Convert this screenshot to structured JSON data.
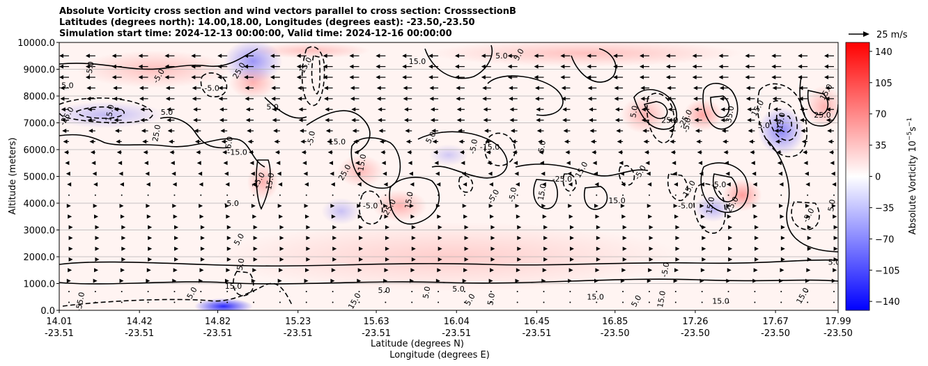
{
  "chart_data": {
    "type": "heatmap",
    "title_lines": [
      "Absolute Vorticity cross section and wind vectors parallel to cross section: CrosssectionB",
      "Latitudes (degrees north): 14.00,18.00, Longitudes (degrees east): -23.50,-23.50",
      "Simulation start time: 2024-12-13 00:00:00, Valid time: 2024-12-16 00:00:00"
    ],
    "ylabel": "Altitude (meters)",
    "xlabel_lat": "Latitude (degrees N)",
    "xlabel_lon": "Longitude (degrees E)",
    "ylim": [
      0,
      10000
    ],
    "xlim": [
      14.01,
      17.99
    ],
    "y_ticks": [
      "0.0",
      "1000.0",
      "2000.0",
      "3000.0",
      "4000.0",
      "5000.0",
      "6000.0",
      "7000.0",
      "8000.0",
      "9000.0",
      "10000.0"
    ],
    "y_tick_values": [
      0,
      1000,
      2000,
      3000,
      4000,
      5000,
      6000,
      7000,
      8000,
      9000,
      10000
    ],
    "x_ticks": [
      {
        "lat": "14.01",
        "lon": "-23.51",
        "v": 14.01
      },
      {
        "lat": "14.42",
        "lon": "-23.51",
        "v": 14.42
      },
      {
        "lat": "14.82",
        "lon": "-23.51",
        "v": 14.82
      },
      {
        "lat": "15.23",
        "lon": "-23.51",
        "v": 15.23
      },
      {
        "lat": "15.63",
        "lon": "-23.51",
        "v": 15.63
      },
      {
        "lat": "16.04",
        "lon": "-23.51",
        "v": 16.04
      },
      {
        "lat": "16.45",
        "lon": "-23.51",
        "v": 16.45
      },
      {
        "lat": "16.85",
        "lon": "-23.50",
        "v": 16.85
      },
      {
        "lat": "17.26",
        "lon": "-23.50",
        "v": 17.26
      },
      {
        "lat": "17.67",
        "lon": "-23.50",
        "v": 17.67
      },
      {
        "lat": "17.99",
        "lon": "-23.50",
        "v": 17.99
      }
    ],
    "grid": "horizontal",
    "colorbar": {
      "label": "Absolute Vorticity 10$^{-5}$s$^{-1}$",
      "label_main": "Absolute Vorticity 10",
      "label_exp1": "−5",
      "label_mid": "s",
      "label_exp2": "−1",
      "range": [
        -150,
        150
      ],
      "ticks": [
        "140",
        "105",
        "70",
        "35",
        "0",
        "−35",
        "−70",
        "−105",
        "−140"
      ],
      "tick_values": [
        140,
        105,
        70,
        35,
        0,
        -35,
        -70,
        -105,
        -140
      ],
      "colormap": "bwr",
      "color_low": "#0000ff",
      "color_mid": "#ffffff",
      "color_high": "#ff0000"
    },
    "quiver_key": {
      "label": "25 m/s"
    },
    "vector_rows": [
      {
        "alt": 9500,
        "u": -1.0
      },
      {
        "alt": 9100,
        "u": -1.0
      },
      {
        "alt": 8700,
        "u": -1.0
      },
      {
        "alt": 8300,
        "u": -0.9
      },
      {
        "alt": 7900,
        "u": -0.9
      },
      {
        "alt": 7500,
        "u": -0.8
      },
      {
        "alt": 7100,
        "u": -0.8
      },
      {
        "alt": 6700,
        "u": -0.7
      },
      {
        "alt": 6300,
        "u": -0.6
      },
      {
        "alt": 5900,
        "u": -0.5
      },
      {
        "alt": 5500,
        "u": -0.4
      },
      {
        "alt": 5100,
        "u": -0.3
      },
      {
        "alt": 4700,
        "u": -0.2
      },
      {
        "alt": 4300,
        "u": -0.1
      },
      {
        "alt": 3900,
        "u": 0.2
      },
      {
        "alt": 3500,
        "u": 0.3
      },
      {
        "alt": 3100,
        "u": 0.4
      },
      {
        "alt": 2700,
        "u": 0.4
      },
      {
        "alt": 2300,
        "u": 0.4
      },
      {
        "alt": 1900,
        "u": 0.4
      },
      {
        "alt": 1500,
        "u": 0.3
      },
      {
        "alt": 1100,
        "u": 0.2
      },
      {
        "alt": 700,
        "u": 0.1
      },
      {
        "alt": 300,
        "u": 0.05
      }
    ],
    "vorticity_blobs": [
      {
        "x": 14.25,
        "y": 7300,
        "rx": 0.3,
        "ry": 500,
        "v": -20
      },
      {
        "x": 14.5,
        "y": 9000,
        "rx": 0.4,
        "ry": 700,
        "v": 15
      },
      {
        "x": 15.0,
        "y": 9300,
        "rx": 0.15,
        "ry": 800,
        "v": -45
      },
      {
        "x": 15.0,
        "y": 8500,
        "rx": 0.12,
        "ry": 600,
        "v": 25
      },
      {
        "x": 15.05,
        "y": 4800,
        "rx": 0.08,
        "ry": 700,
        "v": 25
      },
      {
        "x": 15.55,
        "y": 5200,
        "rx": 0.12,
        "ry": 600,
        "v": 20
      },
      {
        "x": 15.45,
        "y": 3700,
        "rx": 0.1,
        "ry": 500,
        "v": -15
      },
      {
        "x": 15.75,
        "y": 3900,
        "rx": 0.14,
        "ry": 600,
        "v": 25
      },
      {
        "x": 16.0,
        "y": 5800,
        "rx": 0.1,
        "ry": 400,
        "v": -10
      },
      {
        "x": 17.0,
        "y": 7300,
        "rx": 0.12,
        "ry": 700,
        "v": 25
      },
      {
        "x": 17.3,
        "y": 7300,
        "rx": 0.1,
        "ry": 600,
        "v": 35
      },
      {
        "x": 17.5,
        "y": 4300,
        "rx": 0.1,
        "ry": 600,
        "v": 40
      },
      {
        "x": 17.35,
        "y": 3800,
        "rx": 0.1,
        "ry": 500,
        "v": -25
      },
      {
        "x": 17.7,
        "y": 6700,
        "rx": 0.12,
        "ry": 900,
        "v": -55
      },
      {
        "x": 17.92,
        "y": 7600,
        "rx": 0.1,
        "ry": 800,
        "v": 25
      },
      {
        "x": 16.7,
        "y": 9600,
        "rx": 0.8,
        "ry": 500,
        "v": 15
      },
      {
        "x": 14.85,
        "y": 150,
        "rx": 0.15,
        "ry": 300,
        "v": -120
      },
      {
        "x": 15.3,
        "y": 9700,
        "rx": 0.3,
        "ry": 300,
        "v": 15
      },
      {
        "x": 16.0,
        "y": 2000,
        "rx": 1.2,
        "ry": 1300,
        "v": 6
      }
    ],
    "contour_labels": [
      {
        "text": "-5.0",
        "x": 14.18,
        "y": 9000
      },
      {
        "text": "15.0",
        "x": 14.04,
        "y": 8300
      },
      {
        "text": "-25.0",
        "x": 14.06,
        "y": 7200
      },
      {
        "text": "-15.0",
        "x": 14.28,
        "y": 7300
      },
      {
        "text": "5.0",
        "x": 14.56,
        "y": 7300
      },
      {
        "text": "-5.0",
        "x": 14.53,
        "y": 8700
      },
      {
        "text": "25.0",
        "x": 14.52,
        "y": 6600
      },
      {
        "text": "-5.0",
        "x": 14.79,
        "y": 8200
      },
      {
        "text": "25.0",
        "x": 14.94,
        "y": 8900
      },
      {
        "text": "-5.0",
        "x": 14.89,
        "y": 6200
      },
      {
        "text": "-15.0",
        "x": 14.92,
        "y": 5800
      },
      {
        "text": "25.0",
        "x": 15.04,
        "y": 4800
      },
      {
        "text": "15.0",
        "x": 15.1,
        "y": 4800
      },
      {
        "text": "-5.0",
        "x": 14.89,
        "y": 3900
      },
      {
        "text": "5.0",
        "x": 14.94,
        "y": 2600
      },
      {
        "text": "5.0",
        "x": 14.95,
        "y": 1700
      },
      {
        "text": "5.0",
        "x": 15.1,
        "y": 7500
      },
      {
        "text": "15.0",
        "x": 15.28,
        "y": 9100
      },
      {
        "text": "-5.0",
        "x": 15.31,
        "y": 6400
      },
      {
        "text": "15.0",
        "x": 15.43,
        "y": 6200
      },
      {
        "text": "25.0",
        "x": 15.48,
        "y": 5100
      },
      {
        "text": "15.0",
        "x": 15.57,
        "y": 5500
      },
      {
        "text": "-5.0",
        "x": 15.6,
        "y": 3800
      },
      {
        "text": "25.0",
        "x": 15.71,
        "y": 3800
      },
      {
        "text": "15.0",
        "x": 15.81,
        "y": 4100
      },
      {
        "text": "15.0",
        "x": 15.84,
        "y": 9200
      },
      {
        "text": "5.0",
        "x": 15.92,
        "y": 6400
      },
      {
        "text": "-5.0",
        "x": 16.14,
        "y": 6100
      },
      {
        "text": "-15.0",
        "x": 16.21,
        "y": 6000
      },
      {
        "text": "-5.0",
        "x": 16.24,
        "y": 4200
      },
      {
        "text": "-5.0",
        "x": 16.34,
        "y": 4300
      },
      {
        "text": "5.0",
        "x": 16.27,
        "y": 9400
      },
      {
        "text": "5.0",
        "x": 16.37,
        "y": 9500
      },
      {
        "text": "15.0",
        "x": 16.49,
        "y": 4400
      },
      {
        "text": "-25.0",
        "x": 16.58,
        "y": 4800
      },
      {
        "text": "15.0",
        "x": 16.69,
        "y": 5200
      },
      {
        "text": "5.0",
        "x": 16.49,
        "y": 6100
      },
      {
        "text": "15.0",
        "x": 16.86,
        "y": 4000
      },
      {
        "text": "-5.0",
        "x": 16.99,
        "y": 5100
      },
      {
        "text": "5.0",
        "x": 16.96,
        "y": 7400
      },
      {
        "text": "25.0",
        "x": 17.13,
        "y": 7000
      },
      {
        "text": "-25.0",
        "x": 17.22,
        "y": 7100
      },
      {
        "text": "-5.0",
        "x": 17.23,
        "y": 6900
      },
      {
        "text": "-5.0",
        "x": 17.21,
        "y": 3800
      },
      {
        "text": "15.0",
        "x": 17.24,
        "y": 4500
      },
      {
        "text": "15.0",
        "x": 17.35,
        "y": 3900
      },
      {
        "text": "-5.0",
        "x": 17.38,
        "y": 4600
      },
      {
        "text": "25.0",
        "x": 17.46,
        "y": 3900
      },
      {
        "text": "35.0",
        "x": 17.45,
        "y": 7300
      },
      {
        "text": "5.0",
        "x": 17.61,
        "y": 6800
      },
      {
        "text": "15.0",
        "x": 17.59,
        "y": 7500
      },
      {
        "text": "-15.0",
        "x": 17.71,
        "y": 7000
      },
      {
        "text": "25.0",
        "x": 17.91,
        "y": 7200
      },
      {
        "text": "-5.0",
        "x": 17.85,
        "y": 3500
      },
      {
        "text": "5.0",
        "x": 17.97,
        "y": 3900
      },
      {
        "text": "5.0",
        "x": 17.97,
        "y": 1700
      },
      {
        "text": "15.0",
        "x": 17.94,
        "y": 8100
      },
      {
        "text": "-5.0",
        "x": 17.12,
        "y": 1500
      },
      {
        "text": "5.0",
        "x": 16.05,
        "y": 700
      },
      {
        "text": "5.0",
        "x": 16.12,
        "y": 350
      },
      {
        "text": "5.0",
        "x": 16.23,
        "y": 400
      },
      {
        "text": "15.0",
        "x": 16.75,
        "y": 400
      },
      {
        "text": "5.0",
        "x": 16.97,
        "y": 300
      },
      {
        "text": "15.0",
        "x": 17.1,
        "y": 400
      },
      {
        "text": "15.0",
        "x": 17.39,
        "y": 250
      },
      {
        "text": "15.0",
        "x": 17.82,
        "y": 500
      },
      {
        "text": "-55.0",
        "x": 14.13,
        "y": 300
      },
      {
        "text": "15.0",
        "x": 14.9,
        "y": 800
      },
      {
        "text": "15.0",
        "x": 15.53,
        "y": 300
      },
      {
        "text": "5.0",
        "x": 15.9,
        "y": 650
      },
      {
        "text": "5.0",
        "x": 15.67,
        "y": 650
      },
      {
        "text": "5.0",
        "x": 14.7,
        "y": 600
      }
    ]
  }
}
